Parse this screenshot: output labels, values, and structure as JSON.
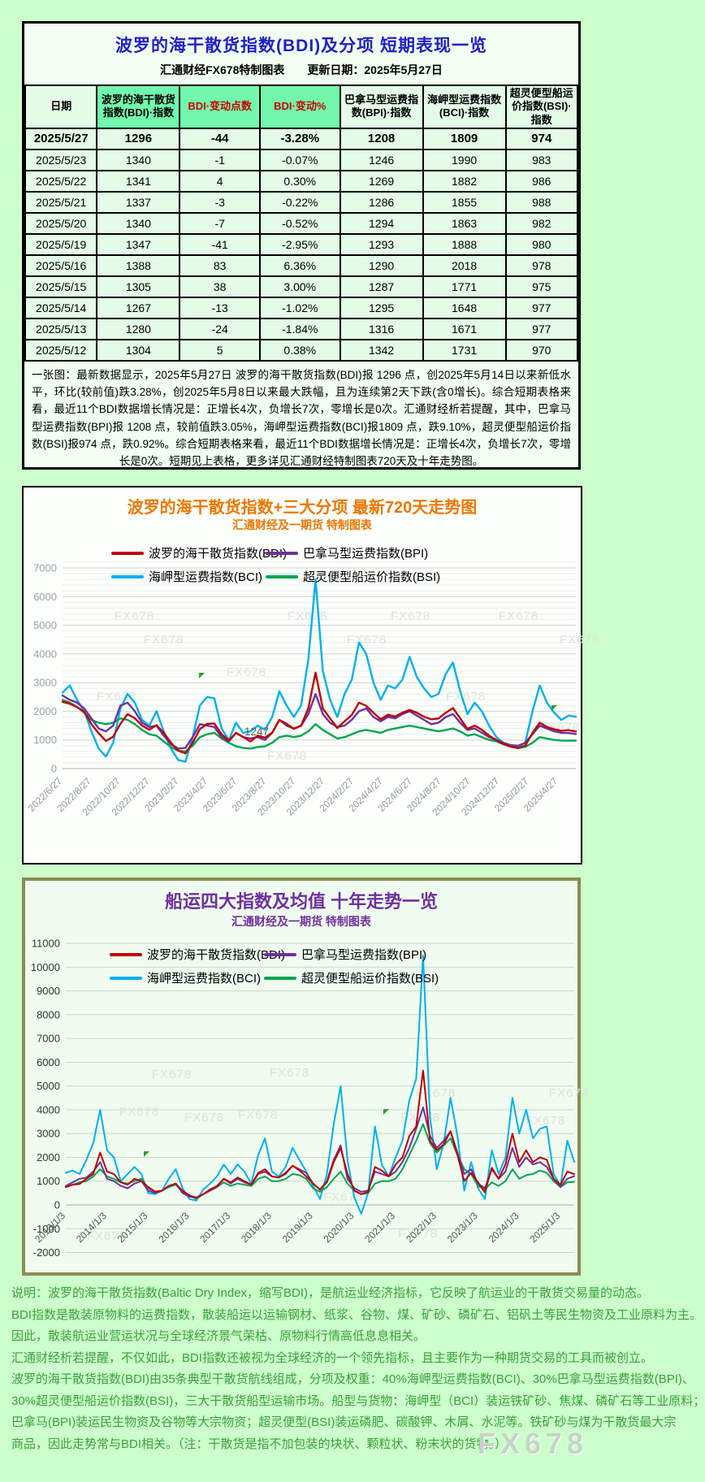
{
  "table_section": {
    "title": "波罗的海干散货指数(BDI)及分项 短期表现一览",
    "subtitle": "汇通财经FX678特制图表　　更新日期：2025年5月27日",
    "headers": [
      "日期",
      "波罗的海干散货指数(BDI)·指数",
      "BDI·变动点数",
      "BDI·变动%",
      "巴拿马型运费指数(BPI)·指数",
      "海岬型运费指数(BCI)·指数",
      "超灵便型船运价指数(BSI)·指数"
    ],
    "highlight_cols": [
      1,
      2,
      3
    ],
    "red_cols": [
      2,
      3
    ],
    "rows": [
      [
        "2025/5/27",
        "1296",
        "-44",
        "-3.28%",
        "1208",
        "1809",
        "974"
      ],
      [
        "2025/5/23",
        "1340",
        "-1",
        "-0.07%",
        "1246",
        "1990",
        "983"
      ],
      [
        "2025/5/22",
        "1341",
        "4",
        "0.30%",
        "1269",
        "1882",
        "986"
      ],
      [
        "2025/5/21",
        "1337",
        "-3",
        "-0.22%",
        "1286",
        "1855",
        "988"
      ],
      [
        "2025/5/20",
        "1340",
        "-7",
        "-0.52%",
        "1294",
        "1863",
        "982"
      ],
      [
        "2025/5/19",
        "1347",
        "-41",
        "-2.95%",
        "1293",
        "1888",
        "980"
      ],
      [
        "2025/5/16",
        "1388",
        "83",
        "6.36%",
        "1290",
        "2018",
        "978"
      ],
      [
        "2025/5/15",
        "1305",
        "38",
        "3.00%",
        "1287",
        "1771",
        "975"
      ],
      [
        "2025/5/14",
        "1267",
        "-13",
        "-1.02%",
        "1295",
        "1648",
        "977"
      ],
      [
        "2025/5/13",
        "1280",
        "-24",
        "-1.84%",
        "1316",
        "1671",
        "977"
      ],
      [
        "2025/5/12",
        "1304",
        "5",
        "0.38%",
        "1342",
        "1731",
        "970"
      ]
    ],
    "summary": "一张图：最新数据显示，2025年5月27日 波罗的海干散货指数(BDI)报 1296 点，创2025年5月14日以来新低水平，环比(较前值)跌3.28%，创2025年5月8日以来最大跌幅，且为连续第2天下跌(含0增长)。综合短期表格来看，最近11个BDI数据增长情况是：正增长4次，负增长7次，零增长是0次。汇通财经析若提醒，其中，巴拿马型运费指数(BPI)报 1208 点，较前值跌3.05%，海岬型运费指数(BCI)报1809 点，跌9.10%，超灵便型船运价指数(BSI)报974 点，跌0.92%。综合短期表格来看，最近11个BDI数据增长情况是：正增长4次，负增长7次，零增长是0次。短期见上表格，更多详见汇通财经特制图表720天及十年走势图。"
  },
  "footer": {
    "lines": [
      "说明：波罗的海干散货指数(Baltic Dry Index，缩写BDI)，是航运业经济指标，它反映了航运业的干散货交易量的动态。",
      "BDI指数是散装原物料的运费指数，散装船运以运输钢材、纸浆、谷物、煤、矿砂、磷矿石、铝矾土等民生物资及工业原料为主。",
      "因此，散装航运业营运状况与全球经济景气荣枯、原物料行情高低息息相关。",
      "汇通财经析若提醒，不仅如此，BDI指数还被视为全球经济的一个领先指标，且主要作为一种期货交易的工具而被创立。",
      "波罗的海干散货指数(BDI)由35条典型干散货航线组成，分项及权重：40%海岬型运费指数(BCI)、30%巴拿马型运费指数(BPI)、",
      "30%超灵便型船运价指数(BSI)，三大干散货船型运输市场。船型与货物：海岬型（BCI）装运铁矿砂、焦煤、磷矿石等工业原料；",
      "巴拿马(BPI)装运民生物资及谷物等大宗物资；超灵便型(BSI)装运磷肥、碳酸钾、木屑、水泥等。铁矿砂与煤为干散货最大宗",
      "商品，因此走势常与BDI相关。（注：干散货是指不加包装的块状、颗粒状、粉末状的货物。）"
    ],
    "watermark": "FX678"
  },
  "colors": {
    "title_blue": "#2020c8",
    "accent_red": "#cc0000",
    "orange": "#ee7700",
    "purple": "#7030a0",
    "footer_green": "#3aa13a",
    "bdi": "#c00000",
    "bpi": "#7030a0",
    "bci": "#00b0f0",
    "bsi": "#00a651"
  },
  "chart_data": [
    {
      "type": "line",
      "title": "波罗的海干散货指数+三大分项 最新720天走势图",
      "subtitle": "汇通财经及一期货 特制图表",
      "ylim": [
        0,
        7000
      ],
      "ytick_step": 1000,
      "minor_step": 200,
      "minor_max": 7200,
      "grid": true,
      "legend_position": "top",
      "watermark": "FX678",
      "annotation": {
        "text": "1247"
      },
      "x_tick_spacing_fraction": 0.0568,
      "x_tick_labels": [
        "2022/6/27",
        "2022/8/27",
        "2022/10/27",
        "2022/12/27",
        "2023/2/27",
        "2023/4/27",
        "2023/6/27",
        "2023/8/27",
        "2023/10/27",
        "2023/12/27",
        "2024/2/27",
        "2024/4/27",
        "2024/6/27",
        "2024/8/27",
        "2024/10/27",
        "2024/12/27",
        "2025/2/27",
        "2025/4/27"
      ],
      "series": [
        {
          "id": "bdi",
          "name": "波罗的海干散货指数(BDI)",
          "color": "#c00000",
          "values": [
            2330,
            2260,
            2150,
            1980,
            1550,
            1230,
            965,
            1110,
            1560,
            1900,
            1760,
            1500,
            1355,
            1515,
            1250,
            900,
            630,
            530,
            900,
            1380,
            1560,
            1576,
            1200,
            983,
            1240,
            1100,
            950,
            1150,
            1080,
            1250,
            1701,
            1560,
            1385,
            1500,
            2102,
            3346,
            2094,
            1750,
            1418,
            1650,
            1869,
            2300,
            2190,
            1950,
            1721,
            1880,
            1815,
            1950,
            2050,
            1950,
            1808,
            1720,
            1747,
            1950,
            2110,
            1750,
            1388,
            1500,
            1355,
            1150,
            997,
            850,
            766,
            715,
            799,
            1250,
            1600,
            1450,
            1373,
            1320,
            1340,
            1296
          ]
        },
        {
          "id": "bpi",
          "name": "巴拿马型运费指数(BPI)",
          "color": "#7030a0",
          "values": [
            2550,
            2400,
            2300,
            2100,
            1750,
            1400,
            1300,
            1500,
            2200,
            2300,
            2000,
            1600,
            1450,
            1500,
            1150,
            850,
            700,
            720,
            1100,
            1550,
            1500,
            1450,
            1100,
            950,
            1250,
            1100,
            1050,
            1100,
            1000,
            1250,
            1700,
            1500,
            1400,
            1500,
            1900,
            2600,
            1900,
            1600,
            1450,
            1500,
            1700,
            2000,
            2100,
            1800,
            1650,
            1800,
            1750,
            1900,
            2000,
            1850,
            1700,
            1550,
            1600,
            1800,
            1900,
            1600,
            1350,
            1400,
            1250,
            1100,
            1000,
            900,
            820,
            800,
            900,
            1200,
            1500,
            1400,
            1300,
            1250,
            1240,
            1208
          ]
        },
        {
          "id": "bci",
          "name": "海岬型运费指数(BCI)",
          "color": "#00b0f0",
          "values": [
            2650,
            2900,
            2400,
            2000,
            1300,
            700,
            420,
            900,
            2100,
            2600,
            2300,
            1700,
            1500,
            2000,
            1300,
            700,
            300,
            240,
            1100,
            2200,
            2500,
            2450,
            1400,
            1000,
            1600,
            1250,
            1300,
            1500,
            1350,
            1800,
            2700,
            2200,
            1800,
            2200,
            3800,
            6600,
            3400,
            2400,
            1800,
            2600,
            3100,
            4400,
            4000,
            3000,
            2400,
            2900,
            2800,
            3100,
            3900,
            3200,
            2800,
            2500,
            2600,
            3300,
            3700,
            2700,
            1900,
            2300,
            2000,
            1500,
            1100,
            900,
            800,
            750,
            900,
            2000,
            2900,
            2300,
            1950,
            1700,
            1850,
            1809
          ]
        },
        {
          "id": "bsi",
          "name": "超灵便型船运价指数(BSI)",
          "color": "#00a651",
          "values": [
            2400,
            2300,
            2150,
            1950,
            1700,
            1600,
            1550,
            1600,
            1750,
            1700,
            1550,
            1350,
            1200,
            1150,
            950,
            750,
            620,
            600,
            800,
            1100,
            1200,
            1250,
            1050,
            900,
            780,
            720,
            700,
            750,
            780,
            900,
            1100,
            1150,
            1100,
            1150,
            1300,
            1550,
            1350,
            1200,
            1050,
            1100,
            1200,
            1300,
            1350,
            1300,
            1250,
            1350,
            1400,
            1450,
            1500,
            1450,
            1400,
            1350,
            1300,
            1350,
            1400,
            1300,
            1150,
            1200,
            1100,
            1000,
            950,
            850,
            780,
            720,
            760,
            900,
            1100,
            1050,
            1000,
            980,
            975,
            974
          ]
        }
      ]
    },
    {
      "type": "line",
      "title": "船运四大指数及均值 十年走势一览",
      "subtitle": "汇通财经及一期货 特制图表",
      "ylim": [
        -2000,
        11000
      ],
      "ytick_step": 1000,
      "grid": true,
      "legend_position": "top",
      "watermark": "FX678",
      "x_tick_spacing_fraction": 0.0811,
      "x_tick_labels": [
        "2013/1/3",
        "2014/1/3",
        "2015/1/3",
        "2016/1/3",
        "2017/1/3",
        "2018/1/3",
        "2019/1/3",
        "2020/1/3",
        "2021/1/3",
        "2022/1/3",
        "2023/1/3",
        "2024/1/3",
        "2025/1/3"
      ],
      "series": [
        {
          "id": "bdi",
          "name": "波罗的海干散货指数(BDI)",
          "color": "#c00000",
          "values": [
            750,
            850,
            880,
            1100,
            1300,
            2200,
            1400,
            1300,
            950,
            850,
            1100,
            1000,
            750,
            560,
            590,
            800,
            900,
            580,
            400,
            310,
            450,
            650,
            800,
            1100,
            950,
            1150,
            1000,
            850,
            1350,
            1500,
            1200,
            1150,
            1350,
            1650,
            1450,
            1200,
            900,
            640,
            950,
            1800,
            2400,
            1300,
            600,
            450,
            550,
            1600,
            1450,
            1200,
            1700,
            2000,
            2900,
            3300,
            5650,
            2700,
            2300,
            2550,
            3100,
            2100,
            1000,
            1350,
            950,
            530,
            1560,
            1100,
            1700,
            3000,
            1800,
            2300,
            1800,
            2000,
            1900,
            1100,
            850,
            1400,
            1296
          ]
        },
        {
          "id": "bpi",
          "name": "巴拿马型运费指数(BPI)",
          "color": "#7030a0",
          "values": [
            800,
            950,
            1100,
            1150,
            1400,
            1800,
            1100,
            1000,
            800,
            700,
            900,
            1000,
            600,
            500,
            600,
            800,
            900,
            500,
            350,
            300,
            450,
            600,
            750,
            1100,
            900,
            1100,
            950,
            850,
            1300,
            1400,
            1200,
            1150,
            1300,
            1650,
            1500,
            1350,
            900,
            650,
            1000,
            1900,
            2500,
            1100,
            700,
            550,
            600,
            1400,
            1300,
            1200,
            1400,
            1800,
            2400,
            3200,
            4100,
            2900,
            2400,
            2700,
            3100,
            2200,
            1300,
            1500,
            900,
            700,
            1500,
            1100,
            1400,
            2400,
            1600,
            2000,
            1700,
            1800,
            1600,
            1100,
            750,
            1100,
            1208
          ]
        },
        {
          "id": "bci",
          "name": "海岬型运费指数(BCI)",
          "color": "#00b0f0",
          "values": [
            1350,
            1450,
            1300,
            1900,
            2600,
            4000,
            2300,
            2000,
            1000,
            1300,
            1600,
            1300,
            500,
            450,
            600,
            1100,
            1500,
            700,
            250,
            180,
            650,
            900,
            1200,
            1700,
            1300,
            1700,
            1400,
            900,
            2100,
            2800,
            1400,
            1200,
            1600,
            2400,
            1900,
            1400,
            800,
            250,
            1300,
            3400,
            5000,
            1900,
            300,
            -372,
            500,
            3300,
            1700,
            1200,
            2000,
            2700,
            4400,
            5300,
            10485,
            3700,
            1500,
            2600,
            4500,
            2900,
            600,
            1800,
            700,
            250,
            2300,
            1300,
            2000,
            4500,
            3000,
            4000,
            2800,
            3200,
            3300,
            1300,
            800,
            2700,
            1809
          ]
        },
        {
          "id": "bsi",
          "name": "超灵便型船运价指数(BSI)",
          "color": "#00a651",
          "values": [
            750,
            850,
            950,
            1000,
            1200,
            1500,
            1200,
            1100,
            950,
            900,
            1000,
            1100,
            700,
            550,
            600,
            750,
            850,
            600,
            400,
            250,
            450,
            600,
            750,
            950,
            800,
            900,
            850,
            800,
            1100,
            1200,
            1000,
            1000,
            1100,
            1300,
            1250,
            1100,
            700,
            550,
            750,
            1100,
            1400,
            900,
            600,
            450,
            500,
            900,
            1000,
            1000,
            1100,
            1500,
            2100,
            2700,
            3400,
            2600,
            2200,
            2500,
            2800,
            2100,
            1500,
            1300,
            800,
            650,
            950,
            800,
            1000,
            1500,
            1100,
            1250,
            1300,
            1450,
            1350,
            1000,
            750,
            950,
            974
          ]
        }
      ]
    }
  ]
}
